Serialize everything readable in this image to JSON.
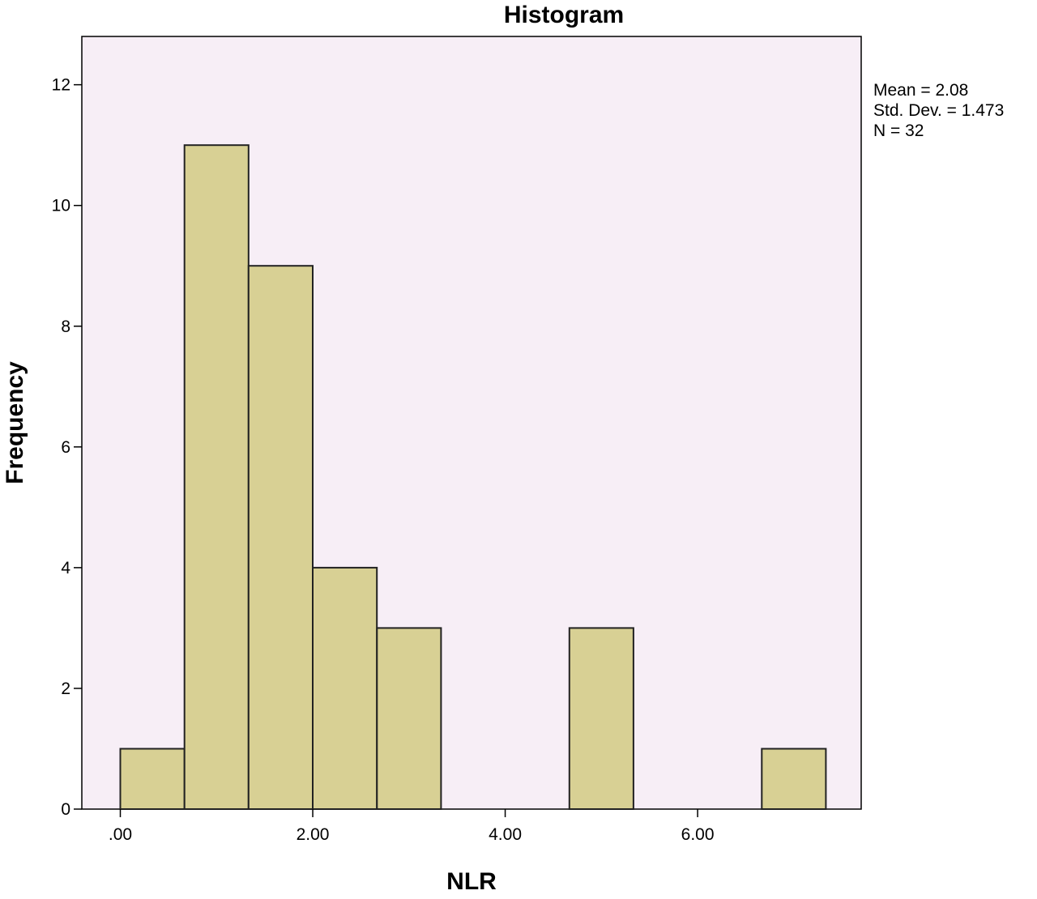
{
  "chart_data": {
    "type": "bar",
    "title": "Histogram",
    "xlabel": "NLR",
    "ylabel": "Frequency",
    "bin_width": 0.667,
    "bins": [
      {
        "start": 0.0,
        "end": 0.667,
        "count": 1
      },
      {
        "start": 0.667,
        "end": 1.333,
        "count": 11
      },
      {
        "start": 1.333,
        "end": 2.0,
        "count": 9
      },
      {
        "start": 2.0,
        "end": 2.667,
        "count": 4
      },
      {
        "start": 2.667,
        "end": 3.333,
        "count": 3
      },
      {
        "start": 3.333,
        "end": 4.0,
        "count": 0
      },
      {
        "start": 4.0,
        "end": 4.667,
        "count": 0
      },
      {
        "start": 4.667,
        "end": 5.333,
        "count": 3
      },
      {
        "start": 5.333,
        "end": 6.0,
        "count": 0
      },
      {
        "start": 6.0,
        "end": 6.667,
        "count": 0
      },
      {
        "start": 6.667,
        "end": 7.333,
        "count": 1
      }
    ],
    "xlim": [
      -0.4,
      7.7
    ],
    "ylim": [
      0,
      12.8
    ],
    "x_ticks": [
      {
        "value": 0,
        "label": ".00"
      },
      {
        "value": 2,
        "label": "2.00"
      },
      {
        "value": 4,
        "label": "4.00"
      },
      {
        "value": 6,
        "label": "6.00"
      }
    ],
    "y_ticks": [
      {
        "value": 0,
        "label": "0"
      },
      {
        "value": 2,
        "label": "2"
      },
      {
        "value": 4,
        "label": "4"
      },
      {
        "value": 6,
        "label": "6"
      },
      {
        "value": 8,
        "label": "8"
      },
      {
        "value": 10,
        "label": "10"
      },
      {
        "value": 12,
        "label": "12"
      }
    ],
    "stats": [
      "Mean = 2.08",
      "Std. Dev. = 1.473",
      "N = 32"
    ],
    "legend": "none",
    "grid": false,
    "colors": {
      "plot_background": "#f7eef6",
      "bar_fill": "#d8d094",
      "bar_stroke": "#222222"
    }
  }
}
